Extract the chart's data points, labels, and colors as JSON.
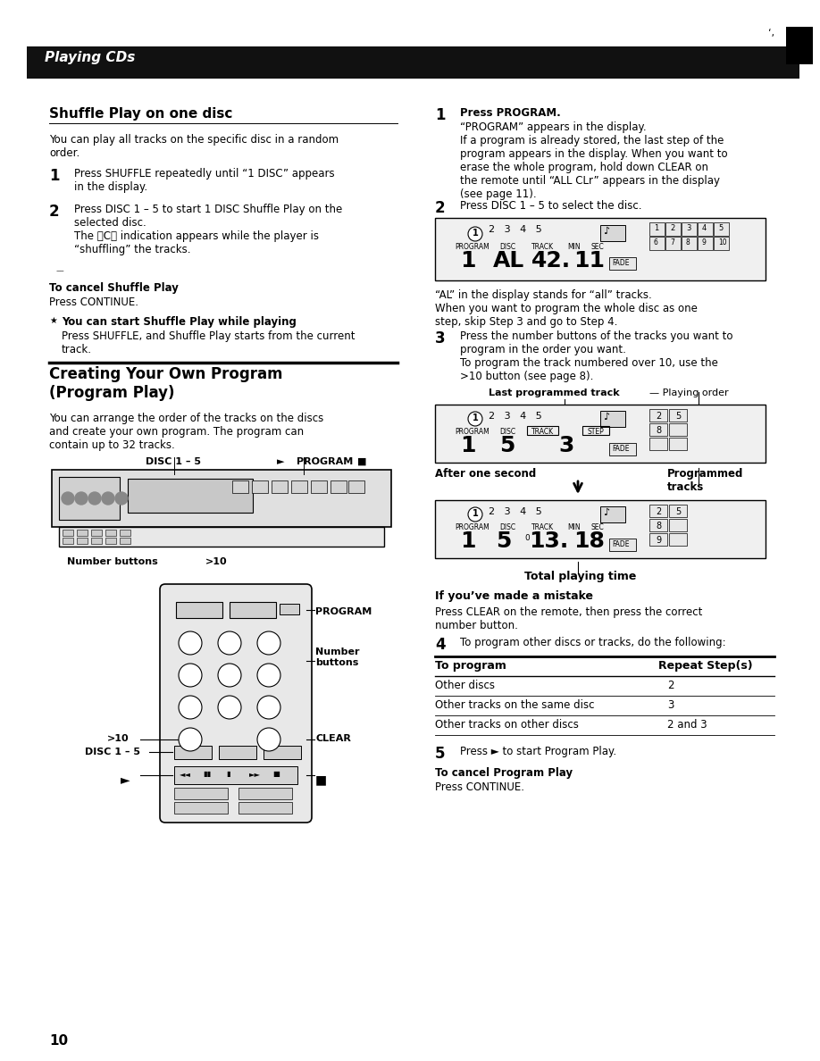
{
  "page_bg": "#ffffff",
  "header_bg": "#111111",
  "header_text": "Playing CDs",
  "header_text_color": "#ffffff",
  "page_number": "10",
  "section1_title": "Shuffle Play on one disc",
  "section1_body": "You can play all tracks on the specific disc in a random\norder.",
  "section1_step1": "Press SHUFFLE repeatedly until “1 DISC” appears\nin the display.",
  "section1_step2": "Press DISC 1 – 5 to start 1 DISC Shuffle Play on the\nselected disc.\nThe 〈C〉 indication appears while the player is\n“shuffling” the tracks.",
  "cancel_shuffle_title": "To cancel Shuffle Play",
  "cancel_shuffle_body": "Press CONTINUE.",
  "tip_title": "You can start Shuffle Play while playing",
  "tip_body": "Press SHUFFLE, and Shuffle Play starts from the current\ntrack.",
  "section2_title": "Creating Your Own Program\n(Program Play)",
  "section2_body": "You can arrange the order of the tracks on the discs\nand create your own program. The program can\ncontain up to 32 tracks.",
  "right_step1_bold": "Press PROGRAM.",
  "right_step1_body": "“PROGRAM” appears in the display.\nIf a program is already stored, the last step of the\nprogram appears in the display. When you want to\nerase the whole program, hold down CLEAR on\nthe remote until “ALL CLr” appears in the display\n(see page 11).",
  "right_step2_body": "Press DISC 1 – 5 to select the disc.",
  "display_note1": "“AL” in the display stands for “all” tracks.\nWhen you want to program the whole disc as one\nstep, skip Step 3 and go to Step 4.",
  "right_step3_body": "Press the number buttons of the tracks you want to\nprogram in the order you want.\nTo program the track numbered over 10, use the\n>10 button (see page 8).",
  "right_step4_body": "To program other discs or tracks, do the following:",
  "right_step5_body": "Press ► to start Program Play.",
  "cancel_program_title": "To cancel Program Play",
  "cancel_program_body": "Press CONTINUE.",
  "table_headers": [
    "To program",
    "Repeat Step(s)"
  ],
  "table_rows": [
    [
      "Other discs",
      "2"
    ],
    [
      "Other tracks on the same disc",
      "3"
    ],
    [
      "Other tracks on other discs",
      "2 and 3"
    ]
  ],
  "mistake_title": "If you’ve made a mistake",
  "mistake_body": "Press CLEAR on the remote, then press the correct\nnumber button.",
  "last_programmed_label": "Last programmed track",
  "playing_order_label": "Playing order",
  "after_one_second_label": "After one second",
  "programmed_tracks_label": "Programmed\ntracks",
  "total_playing_time_label": "Total playing time"
}
